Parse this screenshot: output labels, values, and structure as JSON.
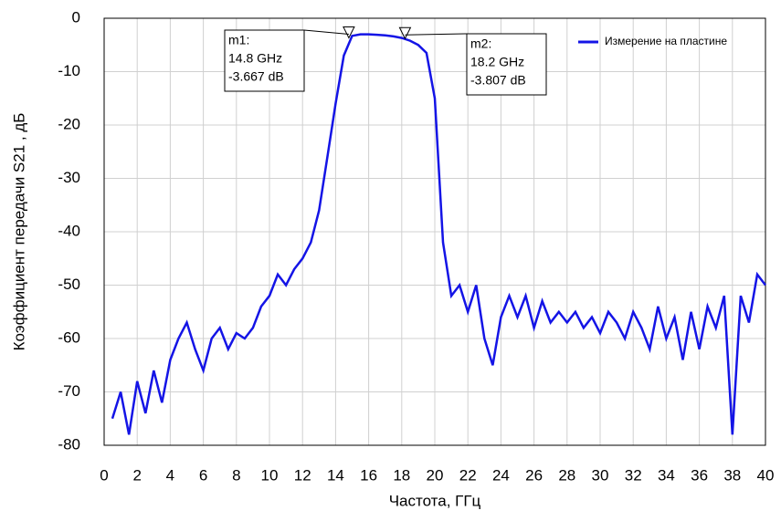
{
  "chart_data": {
    "type": "line",
    "xlabel": "Частота, ГГц",
    "ylabel": "Коэффициент передачи S21 , дБ",
    "x": [
      0.5,
      1,
      1.5,
      2,
      2.5,
      3,
      3.5,
      4,
      4.5,
      5,
      5.5,
      6,
      6.5,
      7,
      7.5,
      8,
      8.5,
      9,
      9.5,
      10,
      10.5,
      11,
      11.5,
      12,
      12.5,
      13,
      13.5,
      14,
      14.5,
      15,
      15.5,
      16,
      16.5,
      17,
      17.5,
      18,
      18.5,
      19,
      19.5,
      20,
      20.5,
      21,
      21.5,
      22,
      22.5,
      23,
      23.5,
      24,
      24.5,
      25,
      25.5,
      26,
      26.5,
      27,
      27.5,
      28,
      28.5,
      29,
      29.5,
      30,
      30.5,
      31,
      31.5,
      32,
      32.5,
      33,
      33.5,
      34,
      34.5,
      35,
      35.5,
      36,
      36.5,
      37,
      37.5,
      38,
      38.5,
      39,
      39.5,
      40
    ],
    "series": [
      {
        "name": "Измерение на пластине",
        "color": "#1414e6",
        "values": [
          -75,
          -70,
          -78,
          -68,
          -74,
          -66,
          -72,
          -64,
          -60,
          -57,
          -62,
          -66,
          -60,
          -58,
          -62,
          -59,
          -60,
          -58,
          -54,
          -52,
          -48,
          -50,
          -47,
          -45,
          -42,
          -36,
          -26,
          -16,
          -7,
          -3.3,
          -3,
          -3,
          -3.1,
          -3.2,
          -3.4,
          -3.7,
          -4.2,
          -5,
          -6.5,
          -15,
          -42,
          -52,
          -50,
          -55,
          -50,
          -60,
          -65,
          -56,
          -52,
          -56,
          -52,
          -58,
          -53,
          -57,
          -55,
          -57,
          -55,
          -58,
          -56,
          -59,
          -55,
          -57,
          -60,
          -55,
          -58,
          -62,
          -54,
          -60,
          -56,
          -64,
          -55,
          -62,
          -54,
          -58,
          -52,
          -78,
          -52,
          -57,
          -48,
          -50
        ]
      }
    ],
    "markers": [
      {
        "name": "m1:",
        "x": {
          "value": 14.8,
          "label": "14.8 GHz"
        },
        "y": {
          "value": -3.667,
          "label": "-3.667 dB"
        }
      },
      {
        "name": "m2:",
        "x": {
          "value": 18.2,
          "label": "18.2 GHz"
        },
        "y": {
          "value": -3.807,
          "label": "-3.807 dB"
        }
      }
    ],
    "xlim": [
      0,
      40
    ],
    "ylim": [
      -80,
      0
    ],
    "xticks": [
      0,
      2,
      4,
      6,
      8,
      10,
      12,
      14,
      16,
      18,
      20,
      22,
      24,
      26,
      28,
      30,
      32,
      34,
      36,
      38,
      40
    ],
    "yticks": [
      0,
      -10,
      -20,
      -30,
      -40,
      -50,
      -60,
      -70,
      -80
    ],
    "grid": true,
    "legend": "upper right"
  }
}
